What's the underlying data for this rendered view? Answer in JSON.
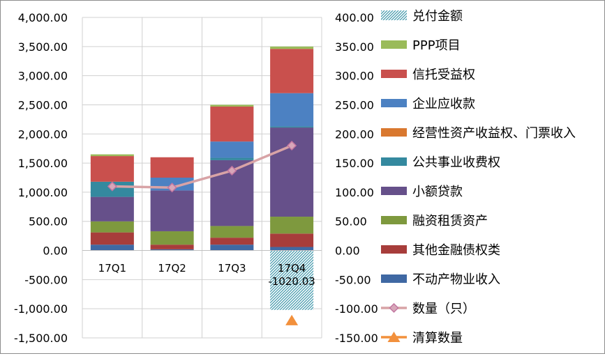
{
  "chart_data": {
    "type": "bar",
    "categories": [
      "17Q1",
      "17Q2",
      "17Q3",
      "17Q4"
    ],
    "y_left": {
      "ticks": [
        "4,000.00",
        "3,500.00",
        "3,000.00",
        "2,500.00",
        "2,000.00",
        "1,500.00",
        "1,000.00",
        "500.00",
        "0.00",
        "-500.00",
        "-1,000.00",
        "-1,500.00"
      ],
      "ylim": [
        -1500,
        4000
      ]
    },
    "y_right": {
      "ticks": [
        "400.00",
        "350.00",
        "300.00",
        "250.00",
        "200.00",
        "150.00",
        "100.00",
        "50.00",
        "0.00",
        "-50.00",
        "-100.00",
        "-150.00"
      ],
      "ylim": [
        -150,
        400
      ]
    },
    "grid": true,
    "legend_position": "right",
    "stacked_series": [
      {
        "name": "不动产物业收入",
        "color": "#3f68a3",
        "values": [
          100,
          20,
          100,
          60
        ]
      },
      {
        "name": "其他金融债权类",
        "color": "#a73d3b",
        "values": [
          210,
          80,
          120,
          230
        ]
      },
      {
        "name": "融资租赁资产",
        "color": "#7e993e",
        "values": [
          190,
          230,
          200,
          290
        ]
      },
      {
        "name": "小额贷款",
        "color": "#66508a",
        "values": [
          420,
          700,
          1130,
          1530
        ]
      },
      {
        "name": "公共事业收费权",
        "color": "#34899f",
        "values": [
          260,
          0,
          40,
          20
        ]
      },
      {
        "name": "经营性资产收益权、门票收入",
        "color": "#d9782f",
        "values": [
          0,
          0,
          0,
          0
        ]
      },
      {
        "name": "企业应收款",
        "color": "#4c81c2",
        "values": [
          0,
          220,
          280,
          570
        ]
      },
      {
        "name": "信托受益权",
        "color": "#c9504d",
        "values": [
          440,
          350,
          600,
          760
        ]
      },
      {
        "name": "PPP项目",
        "color": "#9abb59",
        "values": [
          30,
          0,
          30,
          40
        ]
      }
    ],
    "redemption": {
      "name": "兑付金额",
      "color": "#3d96aa",
      "values": [
        0,
        0,
        0,
        -1020.03
      ],
      "labels": [
        "",
        "",
        "",
        "-1020.03"
      ]
    },
    "line_series": [
      {
        "name": "数量（只）",
        "axis": "right",
        "color": "#d8a3a6",
        "values": [
          110,
          108,
          137,
          180
        ]
      },
      {
        "name": "清算数量",
        "axis": "right",
        "color": "#f2903c",
        "values": [
          null,
          null,
          null,
          -120
        ]
      }
    ],
    "legend": [
      {
        "name": "兑付金额",
        "kind": "hatch",
        "color": "#3d96aa"
      },
      {
        "name": "PPP项目",
        "kind": "box",
        "color": "#9abb59"
      },
      {
        "name": "信托受益权",
        "kind": "box",
        "color": "#c9504d"
      },
      {
        "name": "企业应收款",
        "kind": "box",
        "color": "#4c81c2"
      },
      {
        "name": "经营性资产收益权、门票收入",
        "kind": "box",
        "color": "#d9782f"
      },
      {
        "name": "公共事业收费权",
        "kind": "box",
        "color": "#34899f"
      },
      {
        "name": "小额贷款",
        "kind": "box",
        "color": "#66508a"
      },
      {
        "name": "融资租赁资产",
        "kind": "box",
        "color": "#7e993e"
      },
      {
        "name": "其他金融债权类",
        "kind": "box",
        "color": "#a73d3b"
      },
      {
        "name": "不动产物业收入",
        "kind": "box",
        "color": "#3f68a3"
      },
      {
        "name": "数量（只）",
        "kind": "line-diamond",
        "color": "#d8a3a6",
        "marker_color": "#c98fb0"
      },
      {
        "name": "清算数量",
        "kind": "line-triangle",
        "color": "#f2903c"
      }
    ]
  }
}
